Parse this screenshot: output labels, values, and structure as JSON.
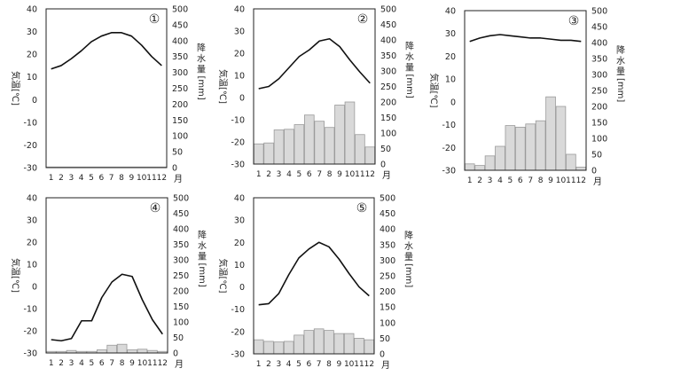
{
  "figure": {
    "month_unit": "月",
    "left_axis_label": [
      "気",
      "温",
      "[",
      "℃",
      "]"
    ],
    "right_axis_label": [
      "降",
      "水",
      "量",
      "[mm]"
    ]
  },
  "chart_data": [
    {
      "type": "bar",
      "label": "①",
      "categories": [
        "1",
        "2",
        "3",
        "4",
        "5",
        "6",
        "7",
        "8",
        "9",
        "10",
        "11",
        "12"
      ],
      "series": [
        {
          "axis": "left",
          "kind": "line",
          "values": [
            13.5,
            15,
            18,
            21.5,
            25.5,
            28,
            29.5,
            29.5,
            28,
            24,
            19,
            15
          ]
        },
        {
          "axis": "right",
          "kind": "bar",
          "values": [
            0,
            0,
            0,
            0,
            0,
            0,
            0,
            0,
            0,
            0,
            0,
            0
          ]
        }
      ],
      "left_axis": {
        "ylim": [
          -30,
          40
        ],
        "ticks": [
          40,
          30,
          20,
          10,
          0,
          -10,
          -20,
          -30
        ]
      },
      "right_axis": {
        "ylim": [
          0,
          500
        ],
        "ticks": [
          500,
          450,
          400,
          350,
          300,
          250,
          200,
          150,
          100,
          50,
          0
        ]
      }
    },
    {
      "type": "bar",
      "label": "②",
      "categories": [
        "1",
        "2",
        "3",
        "4",
        "5",
        "6",
        "7",
        "8",
        "9",
        "10",
        "11",
        "12"
      ],
      "series": [
        {
          "axis": "left",
          "kind": "line",
          "values": [
            4,
            5,
            8.5,
            13.5,
            18.5,
            21.5,
            25.5,
            26.5,
            23,
            17,
            11.5,
            6.5
          ]
        },
        {
          "axis": "right",
          "kind": "bar",
          "values": [
            65,
            68,
            110,
            112,
            127,
            158,
            138,
            118,
            190,
            200,
            95,
            55
          ]
        }
      ],
      "left_axis": {
        "ylim": [
          -30,
          40
        ],
        "ticks": [
          40,
          30,
          20,
          10,
          0,
          -10,
          -20,
          -30
        ]
      },
      "right_axis": {
        "ylim": [
          0,
          500
        ],
        "ticks": [
          500,
          450,
          400,
          350,
          300,
          250,
          200,
          150,
          100,
          50,
          0
        ]
      }
    },
    {
      "type": "bar",
      "label": "③",
      "categories": [
        "1",
        "2",
        "3",
        "4",
        "5",
        "6",
        "7",
        "8",
        "9",
        "10",
        "11",
        "12"
      ],
      "series": [
        {
          "axis": "left",
          "kind": "line",
          "values": [
            26.5,
            28,
            29,
            29.5,
            29,
            28.5,
            28,
            28,
            27.5,
            27,
            27,
            26.5
          ]
        },
        {
          "axis": "right",
          "kind": "bar",
          "values": [
            20,
            15,
            45,
            75,
            140,
            135,
            145,
            155,
            230,
            200,
            50,
            10
          ]
        }
      ],
      "left_axis": {
        "ylim": [
          -30,
          40
        ],
        "ticks": [
          40,
          30,
          20,
          10,
          0,
          -10,
          -20,
          -30
        ]
      },
      "right_axis": {
        "ylim": [
          0,
          500
        ],
        "ticks": [
          500,
          450,
          400,
          350,
          300,
          250,
          200,
          150,
          100,
          50,
          0
        ]
      }
    },
    {
      "type": "bar",
      "label": "④",
      "categories": [
        "1",
        "2",
        "3",
        "4",
        "5",
        "6",
        "7",
        "8",
        "9",
        "10",
        "11",
        "12"
      ],
      "series": [
        {
          "axis": "left",
          "kind": "line",
          "values": [
            -24,
            -24.5,
            -23.5,
            -15.5,
            -15.5,
            -5,
            2,
            5.5,
            4.5,
            -6,
            -15,
            -21.5
          ]
        },
        {
          "axis": "right",
          "kind": "bar",
          "values": [
            5,
            5,
            8,
            5,
            5,
            10,
            25,
            28,
            10,
            12,
            8,
            5
          ]
        }
      ],
      "left_axis": {
        "ylim": [
          -30,
          40
        ],
        "ticks": [
          40,
          30,
          20,
          10,
          0,
          -10,
          -20,
          -30
        ]
      },
      "right_axis": {
        "ylim": [
          0,
          500
        ],
        "ticks": [
          500,
          450,
          400,
          350,
          300,
          250,
          200,
          150,
          100,
          50,
          0
        ]
      }
    },
    {
      "type": "bar",
      "label": "⑤",
      "categories": [
        "1",
        "2",
        "3",
        "4",
        "5",
        "6",
        "7",
        "8",
        "9",
        "10",
        "11",
        "12"
      ],
      "series": [
        {
          "axis": "left",
          "kind": "line",
          "values": [
            -8,
            -7.5,
            -3,
            5.5,
            13,
            17,
            20,
            18,
            12.5,
            6,
            0,
            -4
          ]
        },
        {
          "axis": "right",
          "kind": "bar",
          "values": [
            45,
            40,
            38,
            40,
            60,
            75,
            80,
            75,
            65,
            65,
            50,
            45
          ]
        }
      ],
      "left_axis": {
        "ylim": [
          -30,
          40
        ],
        "ticks": [
          40,
          30,
          20,
          10,
          0,
          -10,
          -20,
          -30
        ]
      },
      "right_axis": {
        "ylim": [
          0,
          500
        ],
        "ticks": [
          500,
          450,
          400,
          350,
          300,
          250,
          200,
          150,
          100,
          50,
          0
        ]
      }
    }
  ]
}
